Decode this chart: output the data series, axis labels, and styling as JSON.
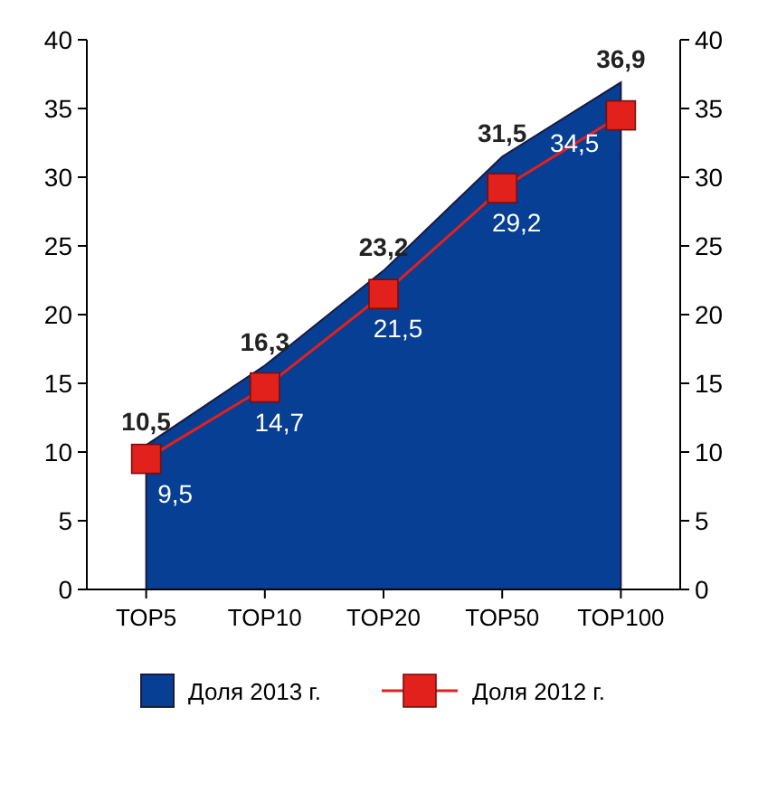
{
  "chart_data": {
    "type": "area",
    "categories": [
      "TOP5",
      "TOP10",
      "TOP20",
      "TOP50",
      "TOP100"
    ],
    "series": [
      {
        "name": "Доля 2013 г.",
        "color": "#063f94",
        "values": [
          10.5,
          16.3,
          23.2,
          31.5,
          36.9
        ],
        "value_labels": [
          "10,5",
          "16,3",
          "23,2",
          "31,5",
          "36,9"
        ]
      },
      {
        "name": "Доля 2012 г.",
        "type": "line",
        "marker": "square",
        "color": "#e3211c",
        "values": [
          9.5,
          14.7,
          21.5,
          29.2,
          34.5
        ],
        "value_labels": [
          "9,5",
          "14,7",
          "21,5",
          "29,2",
          "34,5"
        ]
      }
    ],
    "ylim": [
      0,
      40
    ],
    "yticks": [
      0,
      5,
      10,
      15,
      20,
      25,
      30,
      35,
      40
    ],
    "y2lim": [
      0,
      40
    ],
    "y2ticks": [
      0,
      5,
      10,
      15,
      20,
      25,
      30,
      35,
      40
    ],
    "legend": "bottom",
    "line_style": "solid",
    "grid": false
  }
}
